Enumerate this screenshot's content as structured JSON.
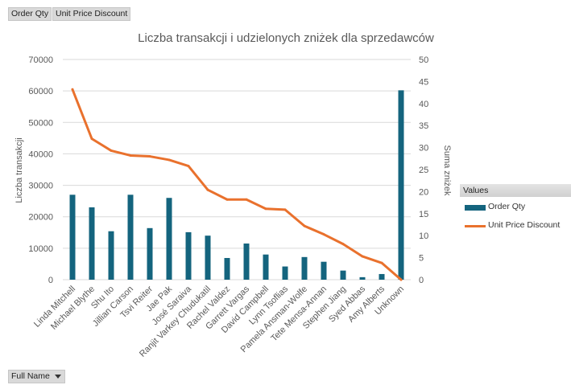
{
  "pivot_buttons": {
    "order_qty": "Order Qty",
    "unit_price_discount": "Unit Price Discount",
    "full_name": "Full Name"
  },
  "legend": {
    "header": "Values",
    "items": [
      "Order Qty",
      "Unit Price Discount"
    ]
  },
  "colors": {
    "bar": "#14647e",
    "line": "#e9712d",
    "grid": "#d9d9d9",
    "text": "#595959"
  },
  "chart_data": {
    "type": "bar",
    "title": "Liczba transakcji i udzielonych zniżek dla sprzedawców",
    "xlabel": "",
    "ylabel": "Liczba transakcji",
    "y2label": "Suma zniżek",
    "ylim": [
      0,
      70000
    ],
    "y2lim": [
      0,
      50
    ],
    "yticks": [
      0,
      10000,
      20000,
      30000,
      40000,
      50000,
      60000,
      70000
    ],
    "y2ticks": [
      0,
      5,
      10,
      15,
      20,
      25,
      30,
      35,
      40,
      45,
      50
    ],
    "categories": [
      "Linda Mitchell",
      "Michael Blythe",
      "Shu Ito",
      "Jillian Carson",
      "Tsvi Reiter",
      "Jae Pak",
      "José Saraiva",
      "Ranjit Varkey Chudukatil",
      "Rachel Valdez",
      "Garrett Vargas",
      "David Campbell",
      "Lynn Tsoflias",
      "Pamela Ansman-Wolfe",
      "Tete Mensa-Annan",
      "Stephen Jiang",
      "Syed Abbas",
      "Amy Alberts",
      "Unknown"
    ],
    "series": [
      {
        "name": "Order Qty",
        "type": "bar",
        "axis": "left",
        "values": [
          27000,
          23000,
          15400,
          27000,
          16400,
          26000,
          15100,
          14000,
          6900,
          11500,
          8000,
          4200,
          7200,
          5700,
          2900,
          800,
          1800,
          60200
        ]
      },
      {
        "name": "Unit Price Discount",
        "type": "line",
        "axis": "right",
        "values": [
          43.2,
          32.0,
          29.3,
          28.2,
          28.0,
          27.2,
          25.8,
          20.4,
          18.2,
          18.2,
          16.1,
          15.9,
          12.2,
          10.3,
          8.1,
          5.3,
          3.8,
          0
        ]
      }
    ]
  }
}
